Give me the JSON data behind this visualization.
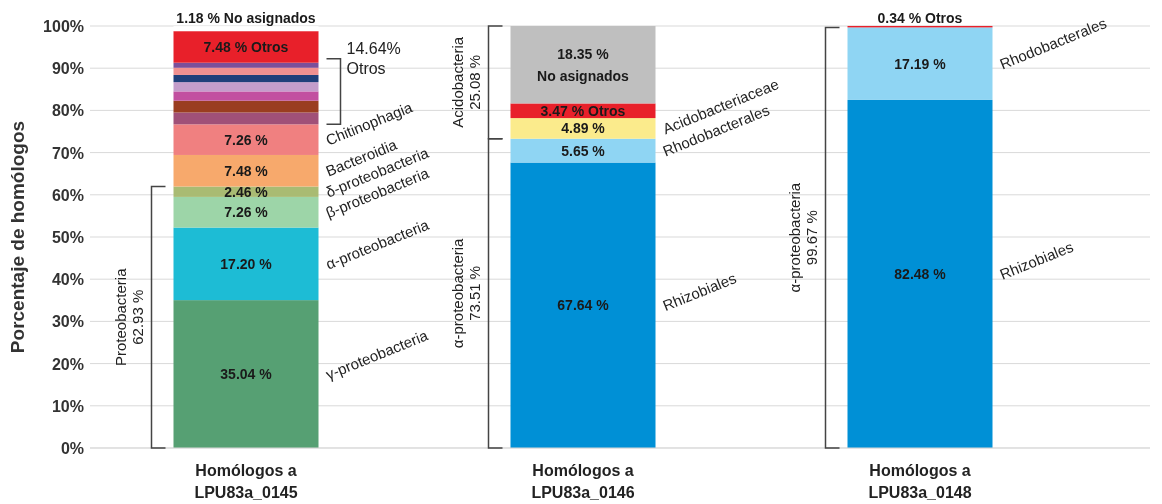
{
  "chart_data": {
    "type": "bar",
    "stacked": true,
    "ylabel": "Porcentaje de homólogos",
    "categories": [
      "Homólogos a\nLPU83a_0145",
      "Homólogos a\nLPU83a_0146",
      "Homólogos a\nLPU83a_0148"
    ],
    "ylim": [
      0,
      100
    ],
    "yticks": [
      {
        "value": 0,
        "label": "0%"
      },
      {
        "value": 10,
        "label": "10%"
      },
      {
        "value": 20,
        "label": "20%"
      },
      {
        "value": 30,
        "label": "30%"
      },
      {
        "value": 40,
        "label": "40%"
      },
      {
        "value": 50,
        "label": "50%"
      },
      {
        "value": 60,
        "label": "60%"
      },
      {
        "value": 70,
        "label": "70%"
      },
      {
        "value": 80,
        "label": "80%"
      },
      {
        "value": 90,
        "label": "90%"
      },
      {
        "value": 100,
        "label": "100%"
      }
    ],
    "grid": "y",
    "legend": false,
    "series": [
      {
        "name": "γ-proteobacteria",
        "color": "#56a073",
        "values": [
          35.04,
          null,
          null
        ],
        "value_labels": [
          "35.04 %",
          null,
          null
        ]
      },
      {
        "name": "α-proteobacteria",
        "color": "#1dbcd5",
        "values": [
          17.2,
          null,
          null
        ],
        "value_labels": [
          "17.20 %",
          null,
          null
        ]
      },
      {
        "name": "β-proteobacteria",
        "color": "#9dd5a8",
        "values": [
          7.26,
          null,
          null
        ],
        "value_labels": [
          "7.26 %",
          null,
          null
        ]
      },
      {
        "name": "δ-proteobacteria",
        "color": "#a9bb73",
        "values": [
          2.46,
          null,
          null
        ],
        "value_labels": [
          "2.46 %",
          null,
          null
        ]
      },
      {
        "name": "Bacteroidia",
        "color": "#f7a96c",
        "values": [
          7.48,
          null,
          null
        ],
        "value_labels": [
          "7.48 %",
          null,
          null
        ]
      },
      {
        "name": "Chitinophagia",
        "color": "#f08080",
        "values": [
          7.26,
          null,
          null
        ],
        "value_labels": [
          "7.26 %",
          null,
          null
        ]
      },
      {
        "color": "#a05078",
        "values": [
          2.8,
          null,
          null
        ]
      },
      {
        "color": "#9a3d20",
        "values": [
          2.8,
          null,
          null
        ]
      },
      {
        "color": "#c250a0",
        "values": [
          2.2,
          null,
          null
        ]
      },
      {
        "color": "#c49dcb",
        "values": [
          2.2,
          null,
          null
        ]
      },
      {
        "color": "#203f7a",
        "values": [
          1.7,
          null,
          null
        ]
      },
      {
        "color": "#f09090",
        "values": [
          1.7,
          null,
          null
        ]
      },
      {
        "color": "#7b4f9a",
        "values": [
          1.2,
          null,
          null
        ]
      },
      {
        "name": "Rhizobiales",
        "color": "#0090d6",
        "values": [
          null,
          67.64,
          82.48
        ],
        "value_labels": [
          null,
          "67.64 %",
          "82.48 %"
        ]
      },
      {
        "name": "Rhodobacterales",
        "color": "#8fd5f3",
        "values": [
          null,
          5.65,
          17.19
        ],
        "value_labels": [
          null,
          "5.65 %",
          "17.19 %"
        ]
      },
      {
        "name": "Acidobacteriaceae",
        "color": "#fbeb8c",
        "values": [
          null,
          4.89,
          null
        ],
        "value_labels": [
          null,
          "4.89 %",
          null
        ]
      },
      {
        "color": "#e8202a",
        "values": [
          7.48,
          3.47,
          0.34
        ],
        "value_labels": [
          "7.48 % Otros",
          "3.47 % Otros",
          "0.34 % Otros"
        ]
      },
      {
        "colors": [
          "#ffffff",
          "#bfbfbf",
          null
        ],
        "values": [
          1.18,
          18.35,
          null
        ],
        "value_labels": [
          "1.18 % No asignados",
          "18.35 %\nNo asignados",
          null
        ]
      }
    ],
    "annotations": [
      "Proteobacteria\n62.93 %",
      "14.64%\nOtros",
      "Acidobacteria\n25.08 %",
      "α-proteobacteria\n73.51 %",
      "α-proteobacteria\n99.67 %"
    ]
  }
}
